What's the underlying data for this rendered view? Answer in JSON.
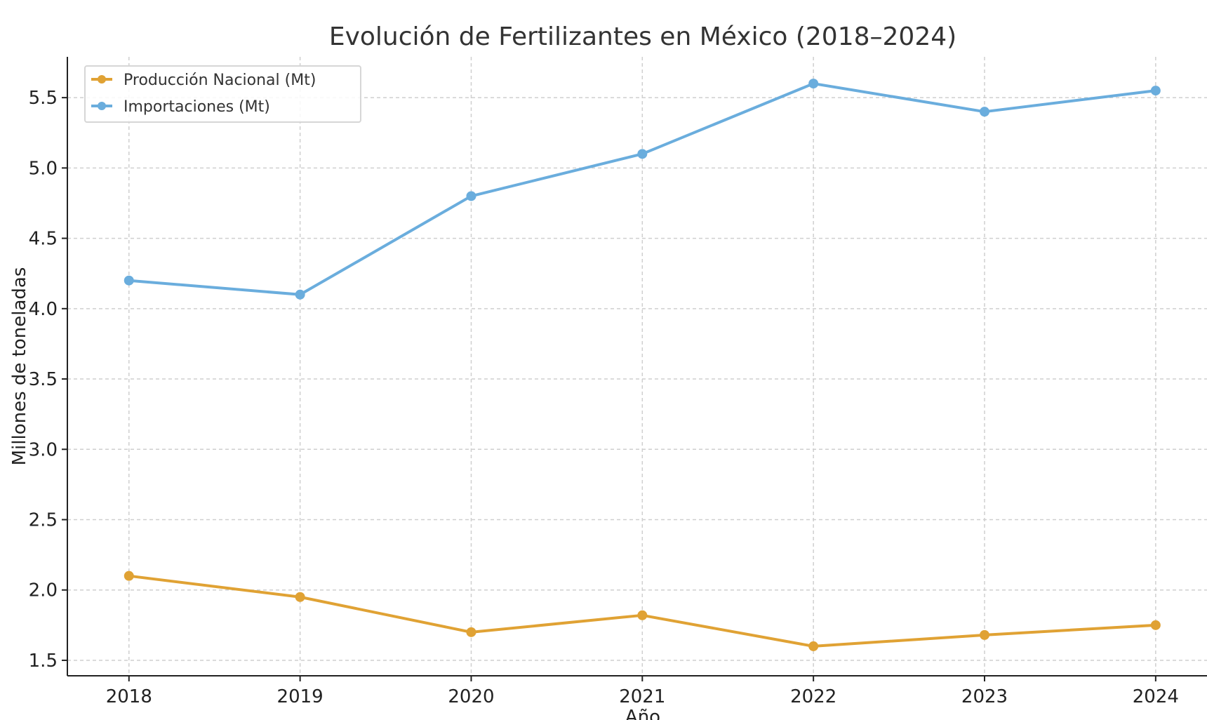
{
  "chart_data": {
    "type": "line",
    "title": "Evolución de Fertilizantes en México (2018–2024)",
    "xlabel": "Año",
    "ylabel": "Millones de toneladas",
    "x": [
      2018,
      2019,
      2020,
      2021,
      2022,
      2023,
      2024
    ],
    "x_tick_labels": [
      "2018",
      "2019",
      "2020",
      "2021",
      "2022",
      "2023",
      "2024"
    ],
    "y_ticks": [
      1.5,
      2.0,
      2.5,
      3.0,
      3.5,
      4.0,
      4.5,
      5.0,
      5.5
    ],
    "y_tick_labels": [
      "1.5",
      "2.0",
      "2.5",
      "3.0",
      "3.5",
      "4.0",
      "4.5",
      "5.0",
      "5.5"
    ],
    "xlim": [
      2017.64,
      2024.3
    ],
    "ylim": [
      1.39,
      5.79
    ],
    "grid": true,
    "legend_position": "top-left",
    "series": [
      {
        "name": "Producción Nacional (Mt)",
        "color": "#E0A234",
        "marker": "circle",
        "values": [
          2.1,
          1.95,
          1.7,
          1.82,
          1.6,
          1.68,
          1.75
        ]
      },
      {
        "name": "Importaciones (Mt)",
        "color": "#6AADDD",
        "marker": "circle",
        "values": [
          4.2,
          4.1,
          4.8,
          5.1,
          5.6,
          5.4,
          5.55
        ]
      }
    ]
  }
}
